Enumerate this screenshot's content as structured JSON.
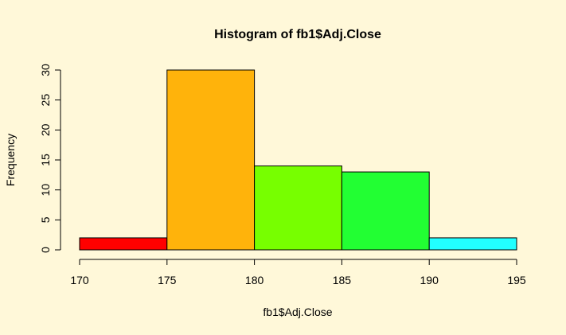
{
  "chart_data": {
    "type": "bar",
    "title": "Histogram of fb1$Adj.Close",
    "xlabel": "fb1$Adj.Close",
    "ylabel": "Frequency",
    "bins": [
      {
        "start": 170,
        "end": 175,
        "count": 2,
        "color": "#ff0000"
      },
      {
        "start": 175,
        "end": 180,
        "count": 30,
        "color": "#ffb30b"
      },
      {
        "start": 180,
        "end": 185,
        "count": 14,
        "color": "#77ff00"
      },
      {
        "start": 185,
        "end": 190,
        "count": 13,
        "color": "#22ff33"
      },
      {
        "start": 190,
        "end": 195,
        "count": 2,
        "color": "#22ffff"
      }
    ],
    "xticks": [
      170,
      175,
      180,
      185,
      190,
      195
    ],
    "yticks": [
      0,
      5,
      10,
      15,
      20,
      25,
      30
    ],
    "xlim": [
      170,
      195
    ],
    "ylim": [
      0,
      30
    ],
    "grid": false,
    "background_color": "#fff8d9"
  }
}
